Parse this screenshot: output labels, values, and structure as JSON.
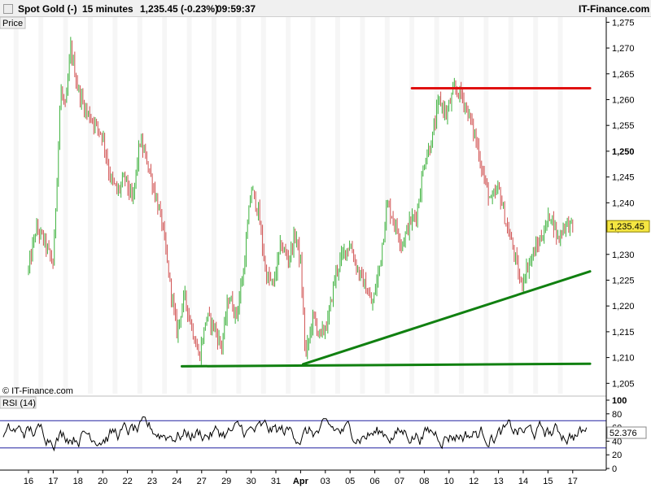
{
  "header": {
    "instrument": "Spot Gold (-)",
    "timeframe": "15 minutes",
    "quote": "1,235.45 (-0.23%)",
    "time": "09:59:37",
    "brand": "IT-Finance.com"
  },
  "panel_labels": {
    "price": "Price",
    "rsi": "RSI (14)",
    "watermark": "© IT-Finance.com"
  },
  "chart_data": [
    {
      "type": "line",
      "name": "price",
      "y_range": [
        1203,
        1276
      ],
      "y_ticks": [
        {
          "value": 1205,
          "label": "1,205"
        },
        {
          "value": 1210,
          "label": "1,210"
        },
        {
          "value": 1215,
          "label": "1,215"
        },
        {
          "value": 1220,
          "label": "1,220"
        },
        {
          "value": 1225,
          "label": "1,225"
        },
        {
          "value": 1230,
          "label": "1,230"
        },
        {
          "value": 1235,
          "label": "1,235"
        },
        {
          "value": 1240,
          "label": "1,240"
        },
        {
          "value": 1245,
          "label": "1,245"
        },
        {
          "value": 1250,
          "label": "1,250",
          "bold": true
        },
        {
          "value": 1255,
          "label": "1,255"
        },
        {
          "value": 1260,
          "label": "1,260"
        },
        {
          "value": 1265,
          "label": "1,265"
        },
        {
          "value": 1270,
          "label": "1,270"
        },
        {
          "value": 1275,
          "label": "1,275"
        }
      ],
      "x_ticks": [
        "16",
        "17",
        "18",
        "20",
        "22",
        "23",
        "24",
        "27",
        "29",
        "30",
        "31",
        "Apr",
        "03",
        "05",
        "06",
        "07",
        "08",
        "10",
        "12",
        "13",
        "14",
        "15",
        "17"
      ],
      "x_tick_index": [
        0,
        1,
        2,
        3,
        4,
        5,
        6,
        7,
        8,
        9,
        10,
        11,
        12,
        13,
        14,
        15,
        16,
        17,
        18,
        19,
        20,
        21,
        22
      ],
      "x_bold": [
        "Apr"
      ],
      "last_price": {
        "value": 1235.45,
        "label": "1,235.45"
      },
      "price_path": [
        [
          0,
          1227
        ],
        [
          0.3,
          1235
        ],
        [
          0.6,
          1233
        ],
        [
          1.0,
          1228
        ],
        [
          1.3,
          1262
        ],
        [
          1.5,
          1258
        ],
        [
          1.7,
          1270
        ],
        [
          2.0,
          1262
        ],
        [
          2.3,
          1258
        ],
        [
          2.6,
          1256
        ],
        [
          3.0,
          1253
        ],
        [
          3.3,
          1245
        ],
        [
          3.6,
          1242
        ],
        [
          3.9,
          1245
        ],
        [
          4.2,
          1240
        ],
        [
          4.5,
          1252
        ],
        [
          4.8,
          1248
        ],
        [
          5.1,
          1242
        ],
        [
          5.4,
          1236
        ],
        [
          5.7,
          1225
        ],
        [
          6.0,
          1215
        ],
        [
          6.3,
          1222
        ],
        [
          6.6,
          1216
        ],
        [
          6.9,
          1210
        ],
        [
          7.2,
          1218
        ],
        [
          7.5,
          1216
        ],
        [
          7.8,
          1212
        ],
        [
          8.1,
          1222
        ],
        [
          8.4,
          1218
        ],
        [
          8.7,
          1227
        ],
        [
          9.0,
          1243
        ],
        [
          9.3,
          1238
        ],
        [
          9.6,
          1226
        ],
        [
          9.9,
          1224
        ],
        [
          10.2,
          1232
        ],
        [
          10.5,
          1229
        ],
        [
          10.8,
          1234
        ],
        [
          11.0,
          1228
        ],
        [
          11.2,
          1210
        ],
        [
          11.5,
          1218
        ],
        [
          11.8,
          1214
        ],
        [
          12.1,
          1217
        ],
        [
          12.4,
          1226
        ],
        [
          12.7,
          1230
        ],
        [
          13.0,
          1232
        ],
        [
          13.3,
          1227
        ],
        [
          13.6,
          1224
        ],
        [
          13.9,
          1220
        ],
        [
          14.2,
          1228
        ],
        [
          14.5,
          1240
        ],
        [
          14.8,
          1236
        ],
        [
          15.1,
          1232
        ],
        [
          15.4,
          1236
        ],
        [
          15.7,
          1238
        ],
        [
          16.0,
          1248
        ],
        [
          16.3,
          1252
        ],
        [
          16.6,
          1260
        ],
        [
          16.9,
          1257
        ],
        [
          17.2,
          1262
        ],
        [
          17.5,
          1261
        ],
        [
          17.8,
          1257
        ],
        [
          18.1,
          1252
        ],
        [
          18.4,
          1245
        ],
        [
          18.7,
          1240
        ],
        [
          19.0,
          1243
        ],
        [
          19.3,
          1236
        ],
        [
          19.6,
          1231
        ],
        [
          19.9,
          1224
        ],
        [
          20.2,
          1228
        ],
        [
          20.5,
          1231
        ],
        [
          20.8,
          1234
        ],
        [
          21.1,
          1238
        ],
        [
          21.4,
          1233
        ],
        [
          21.7,
          1236
        ],
        [
          22.0,
          1235.45
        ]
      ],
      "trendlines": [
        {
          "color": "#e01010",
          "from": [
            15.5,
            1262.2
          ],
          "to": [
            22.7,
            1262.2
          ]
        },
        {
          "color": "#108010",
          "from": [
            6.2,
            1208.3
          ],
          "to": [
            22.7,
            1208.8
          ]
        },
        {
          "color": "#108010",
          "from": [
            11.1,
            1208.7
          ],
          "to": [
            22.7,
            1226.7
          ]
        }
      ]
    },
    {
      "type": "line",
      "name": "RSI (14)",
      "y_range": [
        0,
        100
      ],
      "y_ticks": [
        {
          "value": 100,
          "label": "100"
        },
        {
          "value": 80,
          "label": "80"
        },
        {
          "value": 60,
          "label": "60"
        },
        {
          "value": 40,
          "label": "40"
        },
        {
          "value": 20,
          "label": "20"
        },
        {
          "value": 0,
          "label": "0"
        }
      ],
      "bands": [
        70,
        30
      ],
      "last_value": {
        "value": 52.376,
        "label": "52.376"
      }
    }
  ],
  "colors": {
    "up": "#3cb13c",
    "down": "#d05050",
    "grid": "#e6e6e6",
    "rsi_band": "#2020a0",
    "rsi_line": "#000000",
    "last_price_tag": "#f5e642"
  }
}
